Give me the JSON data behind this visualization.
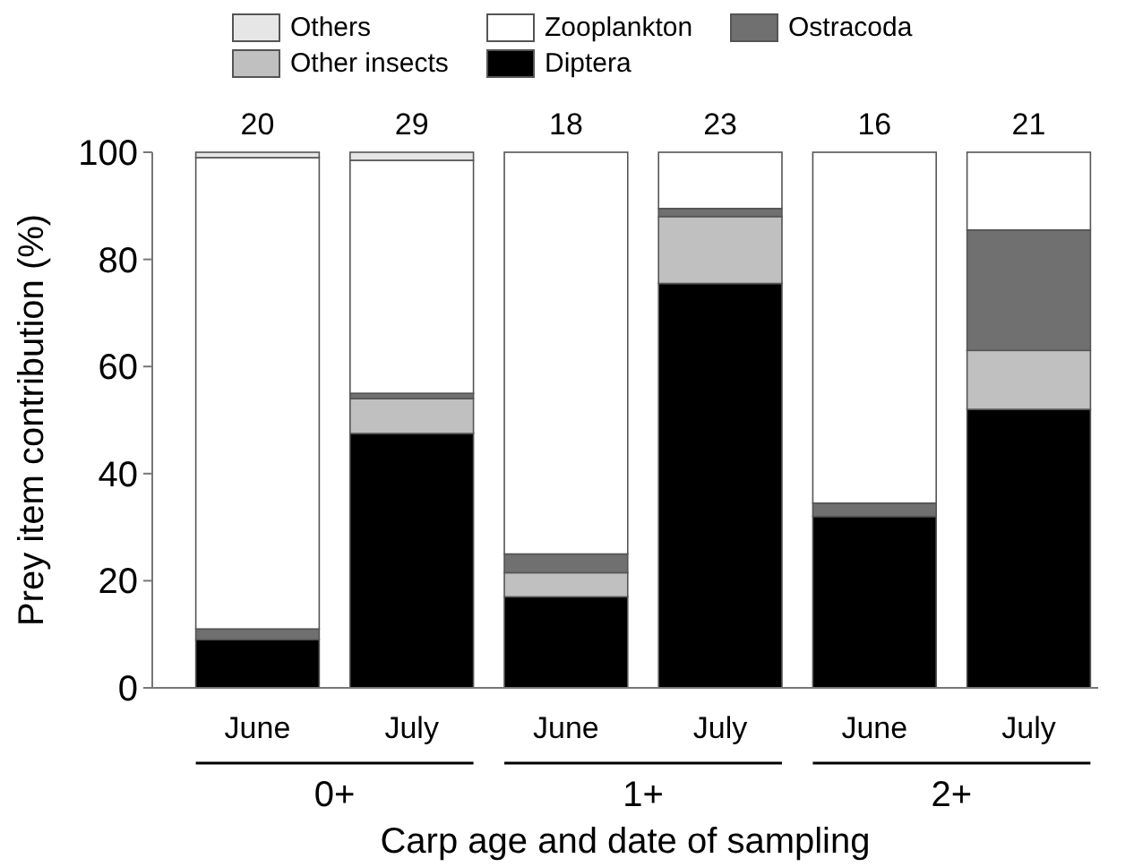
{
  "chart_data": {
    "type": "bar",
    "stacked": true,
    "xlabel": "Carp age and date of sampling",
    "ylabel": "Prey item contribution (%)",
    "categories": [
      "June",
      "July",
      "June",
      "July",
      "June",
      "July"
    ],
    "series": [
      {
        "name": "Diptera",
        "color": "#000000",
        "values": [
          9,
          47.5,
          17,
          75.5,
          32,
          52
        ]
      },
      {
        "name": "Other insects",
        "color": "#c0c0c0",
        "values": [
          0,
          6.5,
          4.5,
          12.5,
          0,
          11
        ]
      },
      {
        "name": "Ostracoda",
        "color": "#707070",
        "values": [
          2,
          1,
          3.5,
          1.5,
          2.5,
          22.5
        ]
      },
      {
        "name": "Zooplankton",
        "color": "#ffffff",
        "values": [
          88,
          43.5,
          75,
          10.5,
          65.5,
          14.5
        ]
      },
      {
        "name": "Others",
        "color": "#e6e6e6",
        "values": [
          1,
          1.5,
          0,
          0,
          0,
          0
        ]
      }
    ],
    "annotations": [
      "0+",
      "1+",
      "2+",
      "20",
      "29",
      "18",
      "23",
      "16",
      "21"
    ],
    "ylim": [
      0,
      100
    ],
    "yticks": [
      0,
      20,
      40,
      60,
      80,
      100
    ],
    "grid": false,
    "legend": "top"
  }
}
